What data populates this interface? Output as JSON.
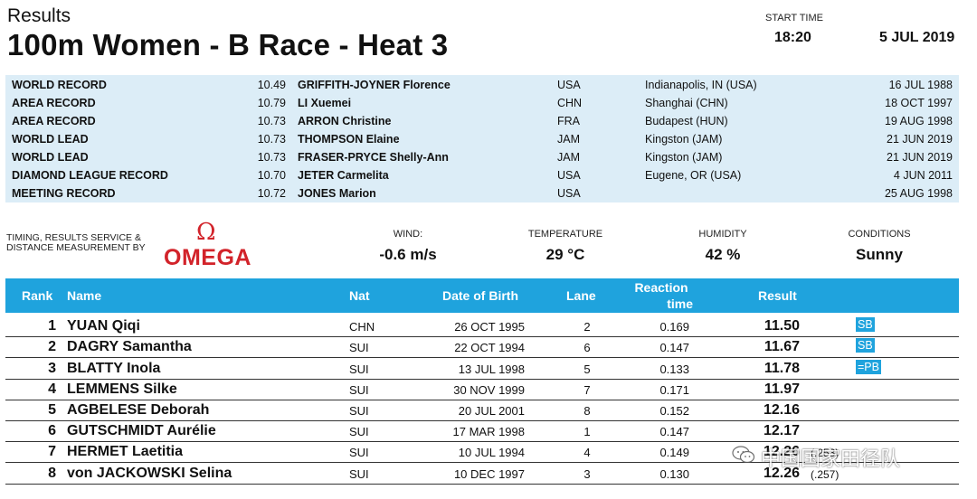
{
  "header": {
    "section": "Results",
    "title": "100m Women - B Race - Heat 3",
    "start_time_label": "START TIME",
    "start_time": "18:20",
    "date": "5 JUL 2019"
  },
  "records": [
    {
      "type": "WORLD RECORD",
      "time": "10.49",
      "name": "GRIFFITH-JOYNER Florence",
      "nat": "USA",
      "venue": "Indianapolis, IN (USA)",
      "date": "16 JUL 1988"
    },
    {
      "type": "AREA RECORD",
      "time": "10.79",
      "name": "LI Xuemei",
      "nat": "CHN",
      "venue": "Shanghai (CHN)",
      "date": "18 OCT 1997"
    },
    {
      "type": "AREA RECORD",
      "time": "10.73",
      "name": "ARRON Christine",
      "nat": "FRA",
      "venue": "Budapest (HUN)",
      "date": "19 AUG 1998"
    },
    {
      "type": "WORLD LEAD",
      "time": "10.73",
      "name": "THOMPSON Elaine",
      "nat": "JAM",
      "venue": "Kingston (JAM)",
      "date": "21 JUN 2019"
    },
    {
      "type": "WORLD LEAD",
      "time": "10.73",
      "name": "FRASER-PRYCE Shelly-Ann",
      "nat": "JAM",
      "venue": "Kingston (JAM)",
      "date": "21 JUN 2019"
    },
    {
      "type": "DIAMOND LEAGUE RECORD",
      "time": "10.70",
      "name": "JETER Carmelita",
      "nat": "USA",
      "venue": "Eugene, OR (USA)",
      "date": "4 JUN 2011"
    },
    {
      "type": "MEETING RECORD",
      "time": "10.72",
      "name": "JONES Marion",
      "nat": "USA",
      "venue": "",
      "date": "25 AUG 1998"
    }
  ],
  "timing": {
    "text_line1": "TIMING, RESULTS SERVICE &",
    "text_line2": "DISTANCE MEASUREMENT BY",
    "logo_symbol": "Ω",
    "logo_word": "OMEGA",
    "logo_color": "#d2232a"
  },
  "conditions": {
    "wind_label": "WIND:",
    "wind": "-0.6 m/s",
    "temperature_label": "TEMPERATURE",
    "temperature": "29 °C",
    "humidity_label": "HUMIDITY",
    "humidity": "42 %",
    "conditions_label": "CONDITIONS",
    "conditions": "Sunny"
  },
  "table": {
    "header_color": "#1fa3dd",
    "columns": {
      "rank": "Rank",
      "name": "Name",
      "nat": "Nat",
      "dob": "Date of Birth",
      "lane": "Lane",
      "reaction_line1": "Reaction",
      "reaction_line2": "time",
      "result": "Result"
    },
    "rows": [
      {
        "rank": "1",
        "name": "YUAN Qiqi",
        "nat": "CHN",
        "dob": "26 OCT 1995",
        "lane": "2",
        "reaction": "0.169",
        "result": "11.50",
        "badge": "SB",
        "extra": ""
      },
      {
        "rank": "2",
        "name": "DAGRY Samantha",
        "nat": "SUI",
        "dob": "22 OCT 1994",
        "lane": "6",
        "reaction": "0.147",
        "result": "11.67",
        "badge": "SB",
        "extra": ""
      },
      {
        "rank": "3",
        "name": "BLATTY Inola",
        "nat": "SUI",
        "dob": "13 JUL 1998",
        "lane": "5",
        "reaction": "0.133",
        "result": "11.78",
        "badge": "=PB",
        "extra": ""
      },
      {
        "rank": "4",
        "name": "LEMMENS Silke",
        "nat": "SUI",
        "dob": "30 NOV 1999",
        "lane": "7",
        "reaction": "0.171",
        "result": "11.97",
        "badge": "",
        "extra": ""
      },
      {
        "rank": "5",
        "name": "AGBELESE Deborah",
        "nat": "SUI",
        "dob": "20 JUL 2001",
        "lane": "8",
        "reaction": "0.152",
        "result": "12.16",
        "badge": "",
        "extra": ""
      },
      {
        "rank": "6",
        "name": "GUTSCHMIDT Aurélie",
        "nat": "SUI",
        "dob": "17 MAR 1998",
        "lane": "1",
        "reaction": "0.147",
        "result": "12.17",
        "badge": "",
        "extra": ""
      },
      {
        "rank": "7",
        "name": "HERMET Laetitia",
        "nat": "SUI",
        "dob": "10 JUL 1994",
        "lane": "4",
        "reaction": "0.149",
        "result": "12.26",
        "badge": "",
        "extra": "(.253)"
      },
      {
        "rank": "8",
        "name": "von JACKOWSKI Selina",
        "nat": "SUI",
        "dob": "10 DEC 1997",
        "lane": "3",
        "reaction": "0.130",
        "result": "12.26",
        "badge": "",
        "extra": "(.257)"
      }
    ]
  },
  "watermark": {
    "text": "中国国家田径队",
    "icon": "wechat-icon"
  }
}
